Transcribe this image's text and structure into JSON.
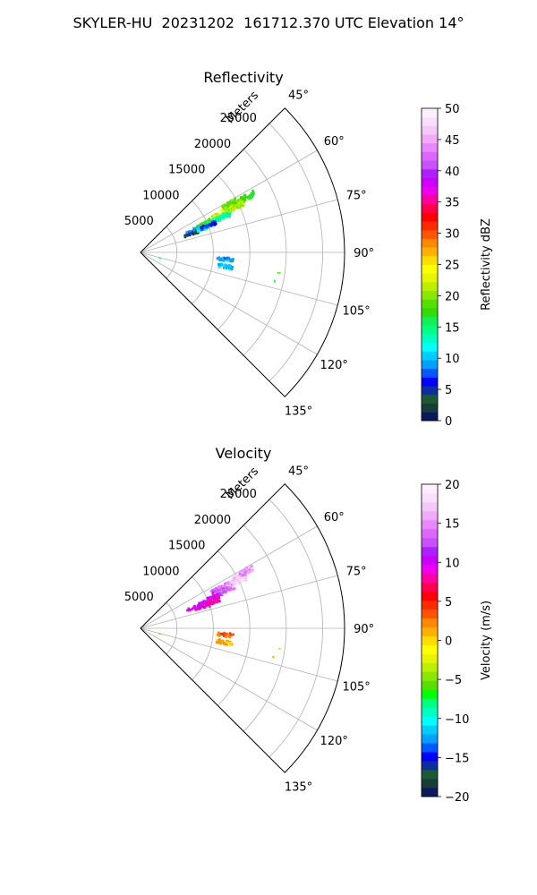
{
  "figure": {
    "suptitle": "SKYLER-HU  20231202  161712.370 UTC Elevation 14°"
  },
  "chart_data": [
    {
      "type": "polar-sector",
      "title": "Reflectivity",
      "r_label": "Meters",
      "r_ticks": [
        5000,
        10000,
        15000,
        20000,
        25000
      ],
      "r_tick_labels": [
        "5000",
        "10000",
        "15000",
        "20000",
        "25000"
      ],
      "r_max": 28000,
      "theta_ticks": [
        45,
        60,
        75,
        90,
        105,
        120,
        135
      ],
      "theta_tick_labels": [
        "45°",
        "60°",
        "75°",
        "90°",
        "105°",
        "120°",
        "135°"
      ],
      "theta_range": [
        45,
        135
      ],
      "grid": true,
      "colorbar": {
        "label": "Reflectivity dBZ",
        "min": 0,
        "max": 50,
        "ticks": [
          0,
          5,
          10,
          15,
          20,
          25,
          30,
          35,
          40,
          45,
          50
        ],
        "tick_labels": [
          "0",
          "5",
          "10",
          "15",
          "20",
          "25",
          "30",
          "35",
          "40",
          "45",
          "50"
        ],
        "colors": [
          "#0b1a5e",
          "#183d3a",
          "#1c5a33",
          "#0d2f9e",
          "#0000ff",
          "#0058ff",
          "#00a0ff",
          "#00ccff",
          "#00ffff",
          "#00ffc0",
          "#00ff80",
          "#11f055",
          "#33dd00",
          "#55e000",
          "#88e800",
          "#bbf000",
          "#e8f500",
          "#ffff00",
          "#ffdd00",
          "#ffb000",
          "#ff8800",
          "#ff5500",
          "#ff2a00",
          "#ff0000",
          "#ff0050",
          "#ff00a0",
          "#ee00ee",
          "#cc00ff",
          "#b020ff",
          "#c850ff",
          "#dd66ff",
          "#e888ff",
          "#f0aaf8",
          "#f5c8fa",
          "#fae0fc",
          "#ffeeff"
        ]
      },
      "series": [
        {
          "values": [
            {
              "r": 9000,
              "theta": 66,
              "value": 16
            },
            {
              "r": 10500,
              "theta": 65.5,
              "value": 18
            },
            {
              "r": 12000,
              "theta": 64.5,
              "value": 22
            },
            {
              "r": 13500,
              "theta": 63.5,
              "value": 24
            },
            {
              "r": 15000,
              "theta": 63,
              "value": 20
            },
            {
              "r": 16500,
              "theta": 62.5,
              "value": 17
            },
            {
              "r": 11000,
              "theta": 67,
              "value": 15
            },
            {
              "r": 14000,
              "theta": 61.5,
              "value": 19
            },
            {
              "r": 8000,
              "theta": 68,
              "value": 9
            },
            {
              "r": 7500,
              "theta": 70,
              "value": 4
            },
            {
              "r": 9500,
              "theta": 69,
              "value": 12
            },
            {
              "r": 12500,
              "theta": 66.5,
              "value": 14
            },
            {
              "r": 14500,
              "theta": 64.5,
              "value": 21
            },
            {
              "r": 10000,
              "theta": 68.5,
              "value": 7
            },
            {
              "r": 2800,
              "theta": 106,
              "value": 13
            },
            {
              "r": 11700,
              "theta": 99.5,
              "value": 10
            },
            {
              "r": 11700,
              "theta": 94.5,
              "value": 9
            },
            {
              "r": 19200,
              "theta": 98.5,
              "value": 18
            },
            {
              "r": 18700,
              "theta": 102,
              "value": 16
            }
          ]
        }
      ]
    },
    {
      "type": "polar-sector",
      "title": "Velocity",
      "r_label": "Meters",
      "r_ticks": [
        5000,
        10000,
        15000,
        20000,
        25000
      ],
      "r_tick_labels": [
        "5000",
        "10000",
        "15000",
        "20000",
        "25000"
      ],
      "r_max": 28000,
      "theta_ticks": [
        45,
        60,
        75,
        90,
        105,
        120,
        135
      ],
      "theta_tick_labels": [
        "45°",
        "60°",
        "75°",
        "90°",
        "105°",
        "120°",
        "135°"
      ],
      "theta_range": [
        45,
        135
      ],
      "grid": true,
      "colorbar": {
        "label": "Velocity (m/s)",
        "min": -20,
        "max": 20,
        "ticks": [
          -20,
          -15,
          -10,
          -5,
          0,
          5,
          10,
          15,
          20
        ],
        "tick_labels": [
          "−20",
          "−15",
          "−10",
          "−5",
          "0",
          "5",
          "10",
          "15",
          "20"
        ],
        "colors": [
          "#0b1a5e",
          "#183d3a",
          "#1c5a33",
          "#0d2f9e",
          "#0000ff",
          "#0058ff",
          "#00a0ff",
          "#00ccff",
          "#00ffff",
          "#00ffc0",
          "#00ff80",
          "#00ff00",
          "#55e000",
          "#88e800",
          "#bbf000",
          "#e8f500",
          "#ffff00",
          "#ffdd00",
          "#ffb000",
          "#ff8800",
          "#ff5500",
          "#ff2a00",
          "#ff0000",
          "#ff0050",
          "#ff00a0",
          "#ee00ee",
          "#cc00ff",
          "#b020ff",
          "#c850ff",
          "#dd66ff",
          "#e888ff",
          "#f0aaf8",
          "#f5c8fa",
          "#fae0fc",
          "#ffeeff"
        ]
      },
      "series": [
        {
          "values": [
            {
              "r": 8000,
              "theta": 69,
              "value": 10
            },
            {
              "r": 9500,
              "theta": 68,
              "value": 11
            },
            {
              "r": 11000,
              "theta": 66.5,
              "value": 10
            },
            {
              "r": 12500,
              "theta": 65,
              "value": 12
            },
            {
              "r": 14000,
              "theta": 63.5,
              "value": 16
            },
            {
              "r": 15500,
              "theta": 62.5,
              "value": 17
            },
            {
              "r": 16500,
              "theta": 61.5,
              "value": 15
            },
            {
              "r": 13000,
              "theta": 66,
              "value": 14
            },
            {
              "r": 9000,
              "theta": 71,
              "value": 9
            },
            {
              "r": 10500,
              "theta": 70,
              "value": 8
            },
            {
              "r": 15000,
              "theta": 64.5,
              "value": 18
            },
            {
              "r": 12000,
              "theta": 63.5,
              "value": 13
            },
            {
              "r": 2800,
              "theta": 106,
              "value": 2
            },
            {
              "r": 11700,
              "theta": 99.5,
              "value": 1
            },
            {
              "r": 11700,
              "theta": 94.5,
              "value": 3
            },
            {
              "r": 19200,
              "theta": 98.5,
              "value": -3
            },
            {
              "r": 18700,
              "theta": 102,
              "value": 1
            }
          ]
        }
      ]
    }
  ]
}
